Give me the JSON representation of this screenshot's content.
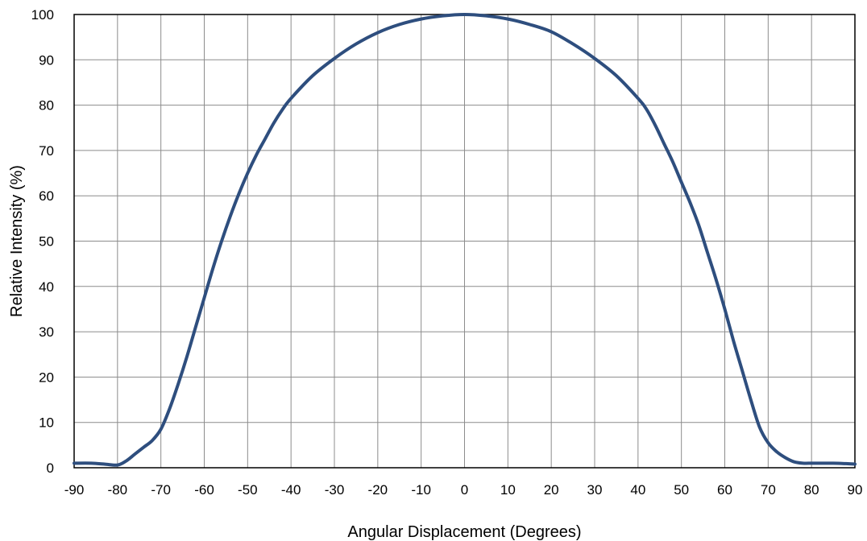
{
  "chart_data": {
    "type": "line",
    "title": "",
    "xlabel": "Angular Displacement (Degrees)",
    "ylabel": "Relative Intensity (%)",
    "xlim": [
      -90,
      90
    ],
    "ylim": [
      0,
      100
    ],
    "x_ticks": [
      -90,
      -80,
      -70,
      -60,
      -50,
      -40,
      -30,
      -20,
      -10,
      0,
      10,
      20,
      30,
      40,
      50,
      60,
      70,
      80,
      90
    ],
    "y_ticks": [
      0,
      10,
      20,
      30,
      40,
      50,
      60,
      70,
      80,
      90,
      100
    ],
    "x_tick_labels": [
      "-90",
      "-80",
      "-70",
      "-60",
      "-50",
      "-40",
      "-30",
      "-20",
      "-10",
      "0",
      "10",
      "20",
      "30",
      "40",
      "50",
      "60",
      "70",
      "80",
      "90"
    ],
    "y_tick_labels": [
      "0",
      "10",
      "20",
      "30",
      "40",
      "50",
      "60",
      "70",
      "80",
      "90",
      "100"
    ],
    "grid": true,
    "legend": "none",
    "series_color": "#2E4E7E",
    "series": [
      {
        "x": [
          -90,
          -86,
          -83,
          -80,
          -78,
          -76,
          -74,
          -72,
          -70,
          -68,
          -66,
          -64,
          -62,
          -60,
          -58,
          -56,
          -54,
          -52,
          -50,
          -48,
          -46,
          -44,
          -42,
          -40,
          -35,
          -30,
          -25,
          -20,
          -15,
          -10,
          -5,
          0,
          5,
          10,
          15,
          20,
          25,
          30,
          35,
          40,
          42,
          44,
          46,
          48,
          50,
          52,
          54,
          56,
          58,
          60,
          62,
          64,
          66,
          68,
          70,
          72,
          74,
          76,
          78,
          80,
          82,
          85,
          88,
          90
        ],
        "y": [
          1,
          1,
          0.8,
          0.6,
          1.5,
          3,
          4.5,
          6,
          8.5,
          13,
          18.5,
          24.5,
          31,
          37.5,
          44,
          50,
          55.5,
          60.5,
          65,
          69,
          72.5,
          76,
          79,
          81.5,
          86.5,
          90.3,
          93.5,
          96,
          97.8,
          99,
          99.7,
          100,
          99.7,
          99,
          97.8,
          96.2,
          93.5,
          90.3,
          86.5,
          81.5,
          79,
          75.5,
          71.5,
          67.5,
          63,
          58.5,
          53.5,
          47.5,
          41.5,
          35,
          28,
          21.5,
          15,
          9,
          5.5,
          3.5,
          2.2,
          1.3,
          1,
          1,
          1,
          1,
          0.9,
          0.8
        ]
      }
    ]
  }
}
